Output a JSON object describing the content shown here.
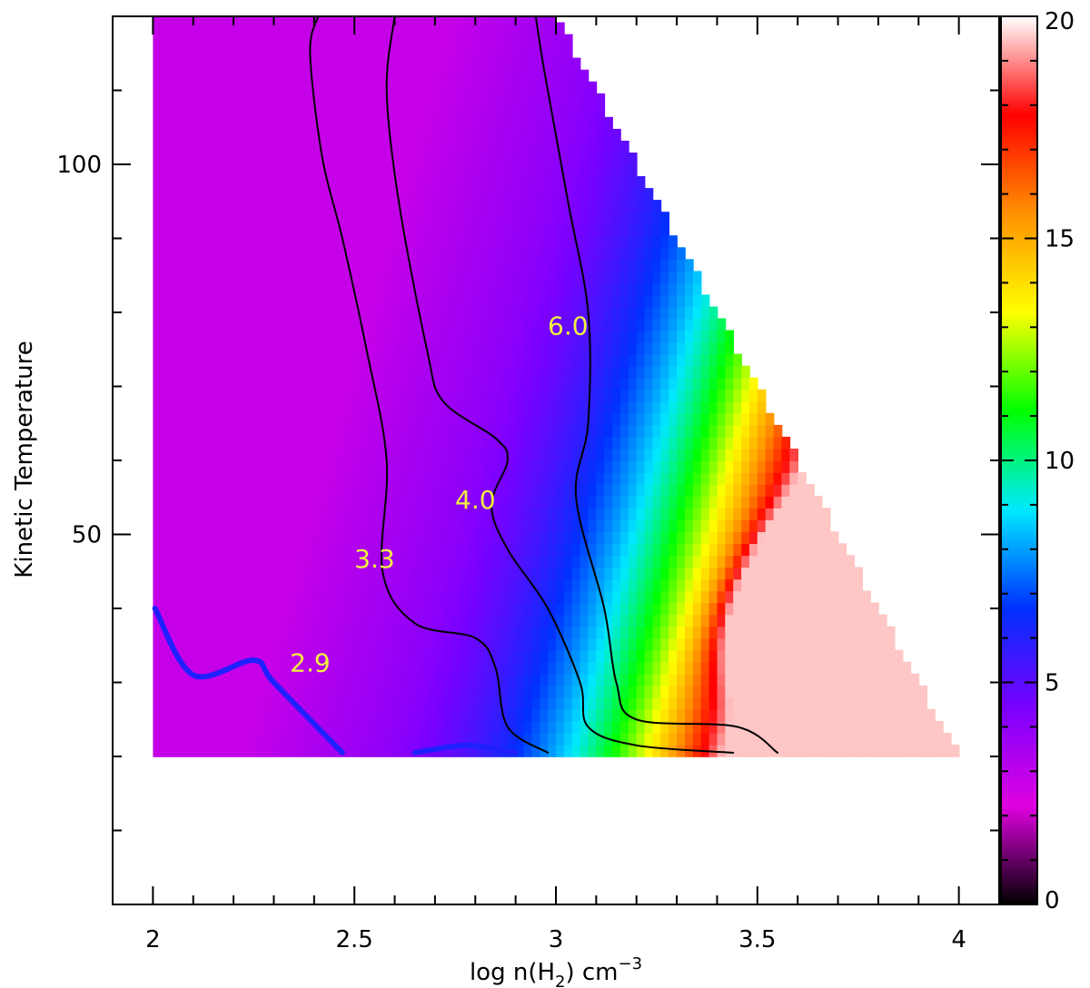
{
  "chart_data": {
    "type": "heatmap",
    "title": "",
    "xlabel": "log n(H",
    "xlabel_sub": "2",
    "xlabel_unit": ") cm",
    "xlabel_sup": "−3",
    "ylabel": "Kinetic Temperature",
    "xlim": [
      1.9,
      4.1
    ],
    "ylim": [
      0,
      120
    ],
    "domain_x": [
      2.0,
      4.0
    ],
    "domain_y": [
      20,
      120
    ],
    "x_ticks": [
      2,
      2.5,
      3,
      3.5,
      4
    ],
    "x_tick_labels": [
      "2",
      "2.5",
      "3",
      "3.5",
      "4"
    ],
    "y_ticks": [
      50,
      100
    ],
    "y_tick_labels": [
      "50",
      "100"
    ],
    "colorbar": {
      "min": 0,
      "max": 20,
      "ticks": [
        0,
        5,
        10,
        15,
        20
      ],
      "tick_labels": [
        "0",
        "5",
        "10",
        "15",
        "20"
      ],
      "colormap": [
        "#000000",
        "#e000e0",
        "#7a00ff",
        "#0030ff",
        "#00e8ff",
        "#00ff00",
        "#ffff00",
        "#ff9000",
        "#ff0000",
        "#ffffff"
      ]
    },
    "upper_boundary": [
      [
        3.0,
        120
      ],
      [
        4.0,
        20
      ]
    ],
    "peak": {
      "x": 3.58,
      "y": 43,
      "value": 18.7
    },
    "contours": [
      {
        "level": "2.9",
        "color": "#2020ff",
        "width": 6,
        "points": [
          [
            2.005,
            40
          ],
          [
            2.1,
            31
          ],
          [
            2.25,
            33
          ],
          [
            2.3,
            30
          ],
          [
            2.47,
            20.5
          ]
        ],
        "label_pos": [
          2.39,
          31.5
        ]
      },
      {
        "level": "2.9b",
        "color": "#2020ff",
        "width": 6,
        "points": [
          [
            2.65,
            20.5
          ],
          [
            2.78,
            21.5
          ],
          [
            2.9,
            20.5
          ]
        ]
      },
      {
        "level": "3.3",
        "color": "#000000",
        "width": 2,
        "points": [
          [
            2.41,
            120
          ],
          [
            2.39,
            115
          ],
          [
            2.42,
            101
          ],
          [
            2.47,
            90
          ],
          [
            2.53,
            75
          ],
          [
            2.58,
            60
          ],
          [
            2.57,
            45
          ],
          [
            2.65,
            38
          ],
          [
            2.8,
            36
          ],
          [
            2.85,
            32
          ],
          [
            2.88,
            24
          ],
          [
            2.98,
            20.5
          ]
        ],
        "label_pos": [
          2.55,
          45.5
        ]
      },
      {
        "level": "4.0",
        "color": "#000000",
        "width": 2,
        "points": [
          [
            2.6,
            120
          ],
          [
            2.58,
            110
          ],
          [
            2.61,
            95
          ],
          [
            2.68,
            75
          ],
          [
            2.72,
            68
          ],
          [
            2.85,
            63
          ],
          [
            2.88,
            60
          ],
          [
            2.84,
            54
          ],
          [
            2.88,
            48
          ],
          [
            2.98,
            40
          ],
          [
            3.06,
            30
          ],
          [
            3.08,
            24
          ],
          [
            3.2,
            21.5
          ],
          [
            3.44,
            20.5
          ]
        ],
        "label_pos": [
          2.8,
          53.5
        ]
      },
      {
        "level": "6.0",
        "color": "#000000",
        "width": 2,
        "points": [
          [
            2.95,
            120
          ],
          [
            2.97,
            113
          ],
          [
            3.03,
            95
          ],
          [
            3.08,
            80
          ],
          [
            3.08,
            65
          ],
          [
            3.05,
            55
          ],
          [
            3.12,
            40
          ],
          [
            3.15,
            30
          ],
          [
            3.2,
            25
          ],
          [
            3.45,
            24
          ],
          [
            3.55,
            20.5
          ]
        ],
        "label_pos": [
          3.03,
          77
        ]
      }
    ]
  }
}
